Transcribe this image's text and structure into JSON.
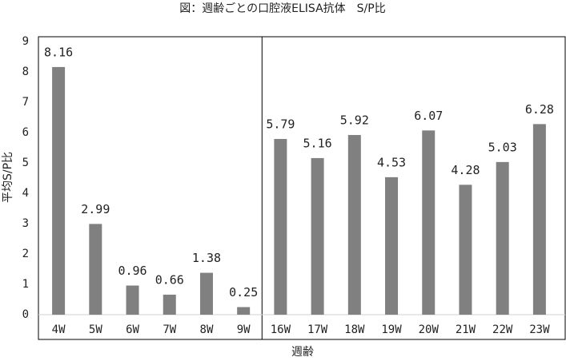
{
  "chart_data": {
    "type": "bar",
    "title": "図：週齢ごとの口腔液ELISA抗体　S/P比",
    "x_label": "週齢",
    "y_label": "平均S/P比",
    "categories": [
      "4W",
      "5W",
      "6W",
      "7W",
      "8W",
      "9W",
      "16W",
      "17W",
      "18W",
      "19W",
      "20W",
      "21W",
      "22W",
      "23W"
    ],
    "values": [
      8.16,
      2.99,
      0.96,
      0.66,
      1.38,
      0.25,
      5.79,
      5.16,
      5.92,
      4.53,
      6.07,
      4.28,
      5.03,
      6.28
    ],
    "color": "#808080",
    "ylim": [
      0,
      9
    ],
    "yticks": [
      0,
      1,
      2,
      3,
      4,
      5,
      6,
      7,
      8,
      9
    ],
    "grid": false
  }
}
